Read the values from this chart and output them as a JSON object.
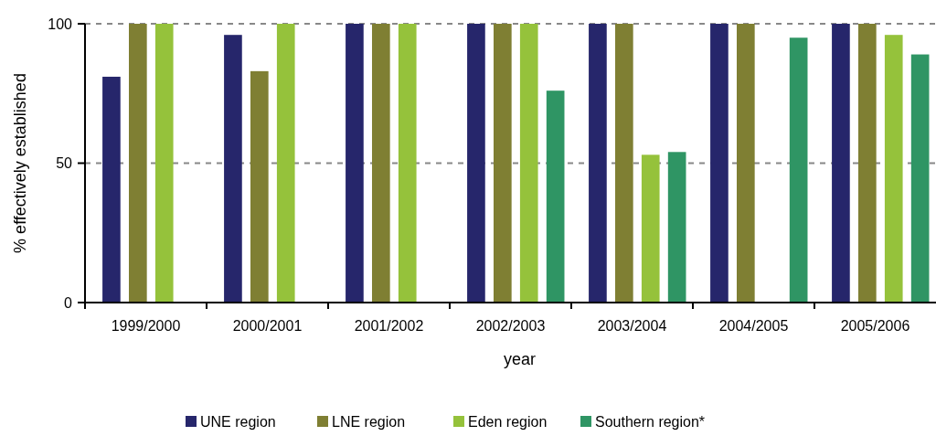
{
  "chart_data": {
    "type": "bar",
    "xlabel": "year",
    "ylabel": "% effectively established",
    "categories": [
      "1999/2000",
      "2000/2001",
      "2001/2002",
      "2002/2003",
      "2003/2004",
      "2004/2005",
      "2005/2006"
    ],
    "series": [
      {
        "name": "UNE region",
        "color": "#26266b",
        "values": [
          81,
          96,
          100,
          100,
          100,
          100,
          100
        ]
      },
      {
        "name": "LNE region",
        "color": "#7f7f33",
        "values": [
          100,
          83,
          100,
          100,
          100,
          100,
          100
        ]
      },
      {
        "name": "Eden region",
        "color": "#95c23b",
        "values": [
          100,
          100,
          100,
          100,
          53,
          null,
          96
        ]
      },
      {
        "name": "Southern region*",
        "color": "#2f9564",
        "values": [
          null,
          null,
          null,
          76,
          54,
          95,
          89
        ]
      }
    ],
    "ylim": [
      0,
      100
    ],
    "yticks": [
      0,
      50,
      100
    ],
    "grid": "y",
    "legend": "bottom"
  }
}
